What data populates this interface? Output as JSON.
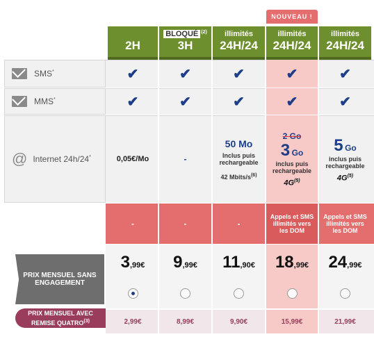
{
  "badge": "NOUVEAU !",
  "headers": [
    {
      "top": "",
      "label": "2H"
    },
    {
      "top": "BLOQUÉ",
      "top_sup": "(2)",
      "label": "3H"
    },
    {
      "top": "illimités",
      "label": "24H/24"
    },
    {
      "top": "illimités",
      "label": "24H/24"
    },
    {
      "top": "illimités",
      "label": "24H/24"
    }
  ],
  "rows": {
    "sms": {
      "label": "SMS",
      "sup": "*"
    },
    "mms": {
      "label": "MMS",
      "sup": "*"
    },
    "internet": {
      "label": "Internet 24h/24",
      "sup": "*"
    }
  },
  "internet_values": [
    {
      "main": "0,05€/Mo"
    },
    {
      "main": "-"
    },
    {
      "main": "50 Mo",
      "line1": "Inclus puis",
      "line2": "rechargeable",
      "line3": "42 Mbits/s",
      "line3_sup": "(6)"
    },
    {
      "strike": "2 Go",
      "big": "3",
      "unit": "Go",
      "line1": "inclus puis",
      "line2": "rechargeable",
      "badge": "4G",
      "badge_sup": "(5)"
    },
    {
      "big": "5",
      "unit": "Go",
      "line1": "inclus puis",
      "line2": "rechargeable",
      "badge": "4G",
      "badge_sup": "(5)"
    }
  ],
  "dom_values": [
    "-",
    "-",
    "-",
    "Appels et SMS illimités vers les DOM",
    "Appels et SMS illimités vers les DOM"
  ],
  "price_label": "PRIX MENSUEL SANS ENGAGEMENT",
  "prices": [
    {
      "int": "3",
      "dec": ",99€"
    },
    {
      "int": "9",
      "dec": ",99€"
    },
    {
      "int": "11",
      "dec": ",90€"
    },
    {
      "int": "18",
      "dec": ",99€"
    },
    {
      "int": "24",
      "dec": ",99€"
    }
  ],
  "quatro_label_1": "PRIX MENSUEL AVEC",
  "quatro_label_2": "REMISE QUATRO",
  "quatro_sup": "(3)",
  "quatro_prices": [
    "2,99€",
    "8,99€",
    "9,90€",
    "15,99€",
    "21,99€"
  ],
  "colors": {
    "green": "#6e8f2e",
    "check": "#1c3e8a",
    "pink": "#f7c9c7",
    "red": "#e46e6e",
    "quatro": "#9a3c5c"
  }
}
